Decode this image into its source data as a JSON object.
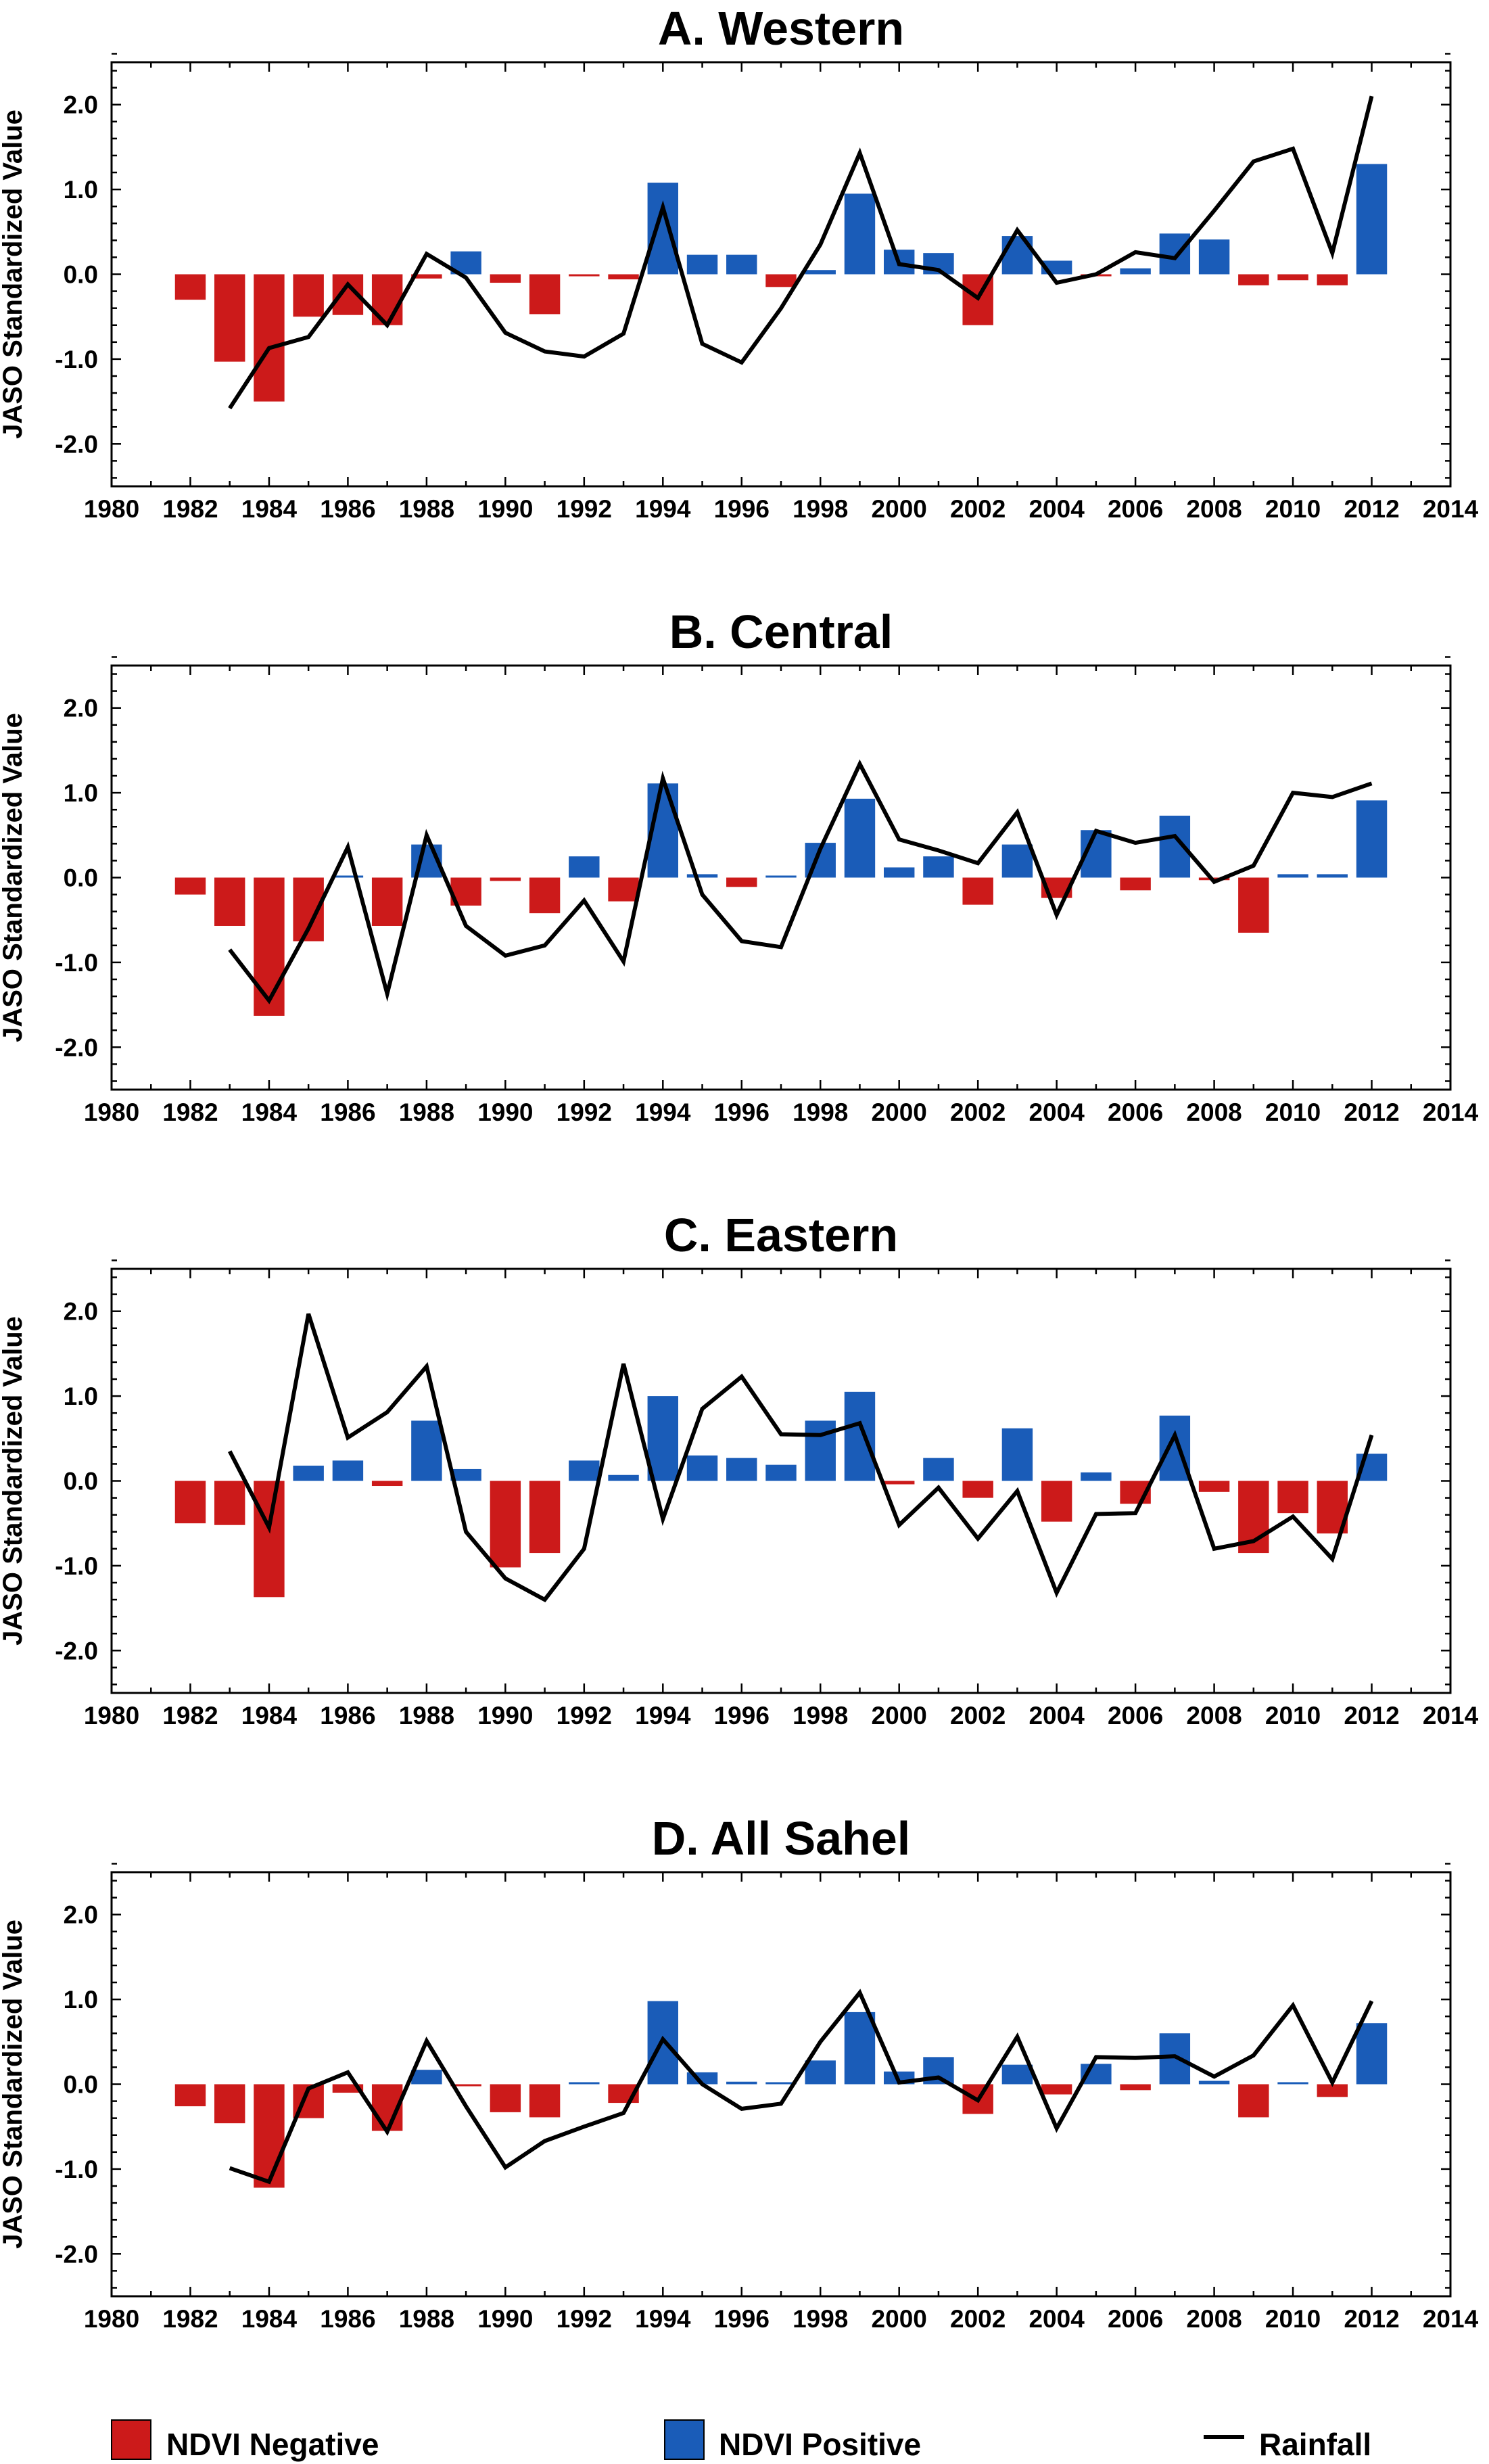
{
  "chart_data": [
    {
      "type": "bar",
      "title": "A. Western",
      "ylabel": "JASO Standardized Value",
      "xlim": [
        1980,
        2014
      ],
      "ylim": [
        -2.5,
        2.5
      ],
      "xticks": [
        "1980",
        "1982",
        "1984",
        "1986",
        "1988",
        "1990",
        "1992",
        "1994",
        "1996",
        "1998",
        "2000",
        "2002",
        "2004",
        "2006",
        "2008",
        "2010",
        "2012",
        "2014"
      ],
      "yticks": [
        "2.0",
        "1.0",
        "0.0",
        "-1.0",
        "-2.0"
      ],
      "years": [
        1982,
        1983,
        1984,
        1985,
        1986,
        1987,
        1988,
        1989,
        1990,
        1991,
        1992,
        1993,
        1994,
        1995,
        1996,
        1997,
        1998,
        1999,
        2000,
        2001,
        2002,
        2003,
        2004,
        2005,
        2006,
        2007,
        2008,
        2009,
        2010,
        2011,
        2012
      ],
      "ndvi": [
        -0.3,
        -1.03,
        -1.5,
        -0.5,
        -0.48,
        -0.6,
        -0.05,
        0.27,
        -0.1,
        -0.47,
        -0.02,
        -0.06,
        1.08,
        0.23,
        0.23,
        -0.15,
        0.05,
        0.95,
        0.29,
        0.25,
        -0.6,
        0.45,
        0.16,
        -0.02,
        0.07,
        0.48,
        0.41,
        -0.13,
        -0.07,
        -0.13,
        1.3
      ],
      "rain_years": [
        1983,
        1984,
        1985,
        1986,
        1987,
        1988,
        1989,
        1990,
        1991,
        1992,
        1993,
        1994,
        1995,
        1996,
        1997,
        1998,
        1999,
        2000,
        2001,
        2002,
        2003,
        2004,
        2005,
        2006,
        2007,
        2008,
        2009,
        2010,
        2011,
        2012
      ],
      "rainfall": [
        -1.58,
        -0.87,
        -0.74,
        -0.12,
        -0.6,
        0.24,
        -0.04,
        -0.69,
        -0.91,
        -0.97,
        -0.7,
        0.79,
        -0.82,
        -1.04,
        -0.4,
        0.35,
        1.43,
        0.12,
        0.05,
        -0.28,
        0.52,
        -0.1,
        0.0,
        0.26,
        0.19,
        0.75,
        1.33,
        1.48,
        0.25,
        2.1
      ]
    },
    {
      "type": "bar",
      "title": "B. Central",
      "ylabel": "JASO Standardized Value",
      "xlim": [
        1980,
        2014
      ],
      "ylim": [
        -2.5,
        2.5
      ],
      "xticks": [
        "1980",
        "1982",
        "1984",
        "1986",
        "1988",
        "1990",
        "1992",
        "1994",
        "1996",
        "1998",
        "2000",
        "2002",
        "2004",
        "2006",
        "2008",
        "2010",
        "2012",
        "2014"
      ],
      "yticks": [
        "2.0",
        "1.0",
        "0.0",
        "-1.0",
        "-2.0"
      ],
      "years": [
        1982,
        1983,
        1984,
        1985,
        1986,
        1987,
        1988,
        1989,
        1990,
        1991,
        1992,
        1993,
        1994,
        1995,
        1996,
        1997,
        1998,
        1999,
        2000,
        2001,
        2002,
        2003,
        2004,
        2005,
        2006,
        2007,
        2008,
        2009,
        2010,
        2011,
        2012
      ],
      "ndvi": [
        -0.2,
        -0.57,
        -1.63,
        -0.75,
        0.02,
        -0.57,
        0.39,
        -0.33,
        -0.04,
        -0.42,
        0.25,
        -0.28,
        1.11,
        0.04,
        -0.11,
        0.0,
        0.41,
        0.93,
        0.12,
        0.25,
        -0.32,
        0.39,
        -0.24,
        0.56,
        -0.15,
        0.73,
        -0.03,
        -0.65,
        0.04,
        0.04,
        0.91
      ],
      "rain_years": [
        1983,
        1984,
        1985,
        1986,
        1987,
        1988,
        1989,
        1990,
        1991,
        1992,
        1993,
        1994,
        1995,
        1996,
        1997,
        1998,
        1999,
        2000,
        2001,
        2002,
        2003,
        2004,
        2005,
        2006,
        2007,
        2008,
        2009,
        2010,
        2011,
        2012
      ],
      "rainfall": [
        -0.85,
        -1.45,
        -0.6,
        0.36,
        -1.37,
        0.5,
        -0.57,
        -0.92,
        -0.8,
        -0.27,
        -0.99,
        1.17,
        -0.2,
        -0.75,
        -0.82,
        0.34,
        1.34,
        0.45,
        0.32,
        0.17,
        0.77,
        -0.44,
        0.55,
        0.41,
        0.49,
        -0.05,
        0.14,
        1.0,
        0.95,
        1.11
      ]
    },
    {
      "type": "bar",
      "title": "C. Eastern",
      "ylabel": "JASO Standardized Value",
      "xlim": [
        1980,
        2014
      ],
      "ylim": [
        -2.5,
        2.5
      ],
      "xticks": [
        "1980",
        "1982",
        "1984",
        "1986",
        "1988",
        "1990",
        "1992",
        "1994",
        "1996",
        "1998",
        "2000",
        "2002",
        "2004",
        "2006",
        "2008",
        "2010",
        "2012",
        "2014"
      ],
      "yticks": [
        "2.0",
        "1.0",
        "0.0",
        "-1.0",
        "-2.0"
      ],
      "years": [
        1982,
        1983,
        1984,
        1985,
        1986,
        1987,
        1988,
        1989,
        1990,
        1991,
        1992,
        1993,
        1994,
        1995,
        1996,
        1997,
        1998,
        1999,
        2000,
        2001,
        2002,
        2003,
        2004,
        2005,
        2006,
        2007,
        2008,
        2009,
        2010,
        2011,
        2012
      ],
      "ndvi": [
        -0.5,
        -0.52,
        -1.37,
        0.18,
        0.24,
        -0.06,
        0.71,
        0.14,
        -1.02,
        -0.85,
        0.24,
        0.07,
        1.0,
        0.3,
        0.27,
        0.19,
        0.71,
        1.05,
        -0.04,
        0.27,
        -0.2,
        0.62,
        -0.48,
        0.1,
        -0.27,
        0.77,
        -0.13,
        -0.85,
        -0.38,
        -0.62,
        0.32
      ],
      "rain_years": [
        1983,
        1984,
        1985,
        1986,
        1987,
        1988,
        1989,
        1990,
        1991,
        1992,
        1993,
        1994,
        1995,
        1996,
        1997,
        1998,
        1999,
        2000,
        2001,
        2002,
        2003,
        2004,
        2005,
        2006,
        2007,
        2008,
        2009,
        2010,
        2011,
        2012
      ],
      "rainfall": [
        0.35,
        -0.55,
        1.97,
        0.51,
        0.81,
        1.35,
        -0.6,
        -1.15,
        -1.4,
        -0.8,
        1.38,
        -0.45,
        0.85,
        1.23,
        0.55,
        0.54,
        0.68,
        -0.52,
        -0.08,
        -0.68,
        -0.12,
        -1.32,
        -0.39,
        -0.38,
        0.54,
        -0.8,
        -0.71,
        -0.42,
        -0.92,
        0.54
      ]
    },
    {
      "type": "bar",
      "title": "D. All Sahel",
      "ylabel": "JASO Standardized Value",
      "xlim": [
        1980,
        2014
      ],
      "ylim": [
        -2.5,
        2.5
      ],
      "xticks": [
        "1980",
        "1982",
        "1984",
        "1986",
        "1988",
        "1990",
        "1992",
        "1994",
        "1996",
        "1998",
        "2000",
        "2002",
        "2004",
        "2006",
        "2008",
        "2010",
        "2012",
        "2014"
      ],
      "yticks": [
        "2.0",
        "1.0",
        "0.0",
        "-1.0",
        "-2.0"
      ],
      "years": [
        1982,
        1983,
        1984,
        1985,
        1986,
        1987,
        1988,
        1989,
        1990,
        1991,
        1992,
        1993,
        1994,
        1995,
        1996,
        1997,
        1998,
        1999,
        2000,
        2001,
        2002,
        2003,
        2004,
        2005,
        2006,
        2007,
        2008,
        2009,
        2010,
        2011,
        2012
      ],
      "ndvi": [
        -0.26,
        -0.46,
        -1.22,
        -0.4,
        -0.1,
        -0.55,
        0.17,
        -0.02,
        -0.33,
        -0.39,
        0.02,
        -0.22,
        0.98,
        0.14,
        0.03,
        0.0,
        0.28,
        0.85,
        0.15,
        0.32,
        -0.35,
        0.23,
        -0.12,
        0.24,
        -0.07,
        0.6,
        0.04,
        -0.39,
        0.02,
        -0.15,
        0.72
      ],
      "rain_years": [
        1983,
        1984,
        1985,
        1986,
        1987,
        1988,
        1989,
        1990,
        1991,
        1992,
        1993,
        1994,
        1995,
        1996,
        1997,
        1998,
        1999,
        2000,
        2001,
        2002,
        2003,
        2004,
        2005,
        2006,
        2007,
        2008,
        2009,
        2010,
        2011,
        2012
      ],
      "rainfall": [
        -0.99,
        -1.15,
        -0.05,
        0.14,
        -0.56,
        0.51,
        -0.26,
        -0.98,
        -0.67,
        -0.5,
        -0.34,
        0.53,
        0.0,
        -0.29,
        -0.23,
        0.5,
        1.08,
        0.02,
        0.08,
        -0.19,
        0.56,
        -0.52,
        0.32,
        0.31,
        0.33,
        0.09,
        0.34,
        0.93,
        0.02,
        0.98
      ]
    }
  ],
  "legend": {
    "negative_label": "NDVI Negative",
    "positive_label": "NDVI Positive",
    "rainfall_label": "Rainfall"
  },
  "colors": {
    "negative": "#cc1a1a",
    "positive": "#1a5cb8",
    "rainfall": "#000000"
  }
}
